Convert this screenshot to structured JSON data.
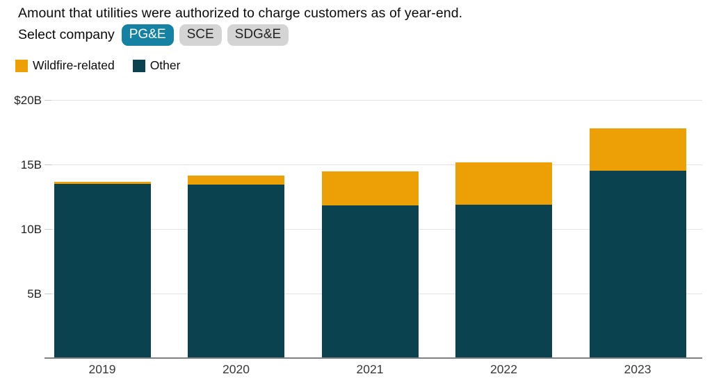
{
  "header": {
    "title": "Amount that utilities were authorized to charge customers as of year-end."
  },
  "selector": {
    "label": "Select company",
    "options": [
      {
        "label": "PG&E",
        "selected": true
      },
      {
        "label": "SCE",
        "selected": false
      },
      {
        "label": "SDG&E",
        "selected": false
      }
    ]
  },
  "legend": {
    "items": [
      {
        "label": "Wildfire-related",
        "color": "#EDA005"
      },
      {
        "label": "Other",
        "color": "#0A4250"
      }
    ]
  },
  "colors": {
    "accent_teal": "#1581A3",
    "button_gray": "#D4D4D4",
    "bar_orange": "#EDA005",
    "bar_teal": "#0A4250",
    "gridline": "#E3E3E3",
    "tick": "#C9C9C9",
    "axis": "#808080"
  },
  "chart_data": {
    "type": "bar",
    "stacked": true,
    "categories": [
      "2019",
      "2020",
      "2021",
      "2022",
      "2023"
    ],
    "series": [
      {
        "name": "Other",
        "color": "#0A4250",
        "values": [
          13.5,
          13.45,
          11.85,
          11.9,
          14.5
        ]
      },
      {
        "name": "Wildfire-related",
        "color": "#EDA005",
        "values": [
          0.15,
          0.7,
          2.6,
          3.25,
          3.3
        ]
      }
    ],
    "totals": [
      13.65,
      14.15,
      14.45,
      15.15,
      17.8
    ],
    "title": "Amount that utilities were authorized to charge customers as of year-end.",
    "xlabel": "",
    "ylabel": "",
    "unit": "billions of USD",
    "yticks": [
      5,
      10,
      15,
      20
    ],
    "ytick_labels": [
      "5B",
      "10B",
      "15B",
      "$20B"
    ],
    "ylim": [
      0,
      20
    ],
    "grid": true,
    "legend_position": "top-left"
  }
}
